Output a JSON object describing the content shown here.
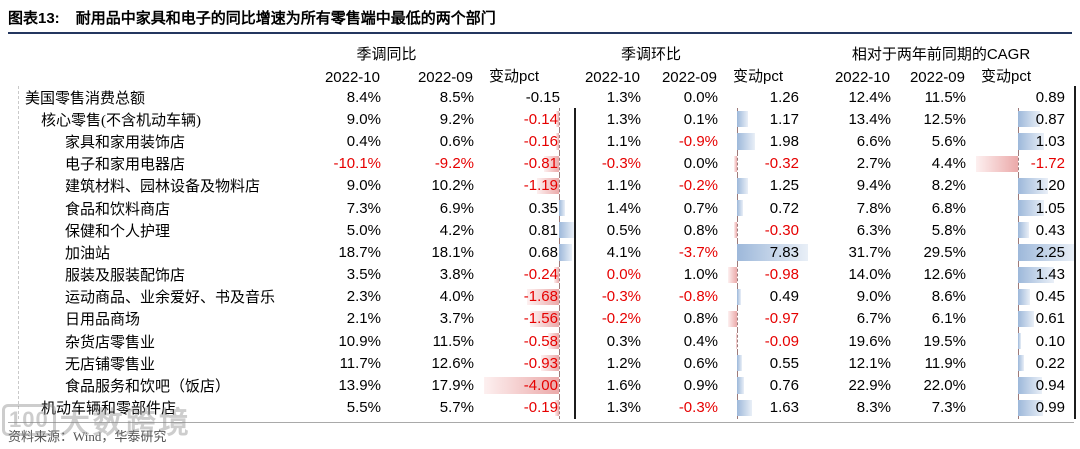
{
  "figure": {
    "label": "图表13:",
    "title": "耐用品中家具和电子的同比增速为所有零售端中最低的两个部门"
  },
  "footer": {
    "source": "资料来源：Wind，华泰研究"
  },
  "watermark": {
    "logo": "100",
    "text": "大数跨境"
  },
  "colors": {
    "teal_header_row": "#2d7d8e",
    "subtotal_row_gray": "#d9d9d9",
    "negative_red": "#e60000",
    "title_rule_navy": "#24365f",
    "bar_positive_blue": "#9db8da",
    "bar_negative_red": "#eba9a9"
  },
  "chart_data": {
    "type": "table",
    "title": "耐用品中家具和电子的同比增速为所有零售端中最低的两个部门",
    "column_groups": [
      {
        "title": "季调同比",
        "columns": [
          "2022-10",
          "2022-09",
          "变动pct"
        ]
      },
      {
        "title": "季调环比",
        "columns": [
          "2022-10",
          "2022-09",
          "变动pct"
        ]
      },
      {
        "title": "相对于两年前同期的CAGR",
        "columns": [
          "2022-10",
          "2022-09",
          "变动pct"
        ]
      }
    ],
    "rows": [
      {
        "label": "美国零售消费总额",
        "type": "total",
        "cells": [
          [
            "8.4%",
            "8.5%",
            -0.15
          ],
          [
            "1.3%",
            "0.0%",
            1.26
          ],
          [
            "12.4%",
            "11.5%",
            0.89
          ]
        ]
      },
      {
        "label": "核心零售(不含机动车辆)",
        "type": "subtotal",
        "cells": [
          [
            "9.0%",
            "9.2%",
            -0.14
          ],
          [
            "1.3%",
            "0.1%",
            1.17
          ],
          [
            "13.4%",
            "12.5%",
            0.87
          ]
        ]
      },
      {
        "label": "家具和家用装饰店",
        "type": "item",
        "cells": [
          [
            "0.4%",
            "0.6%",
            -0.16
          ],
          [
            "1.1%",
            "-0.9%",
            1.98
          ],
          [
            "6.6%",
            "5.6%",
            1.03
          ]
        ]
      },
      {
        "label": "电子和家用电器店",
        "type": "item",
        "cells": [
          [
            "-10.1%",
            "-9.2%",
            -0.81
          ],
          [
            "-0.3%",
            "0.0%",
            -0.32
          ],
          [
            "2.7%",
            "4.4%",
            -1.72
          ]
        ]
      },
      {
        "label": "建筑材料、园林设备及物料店",
        "type": "item",
        "cells": [
          [
            "9.0%",
            "10.2%",
            -1.19
          ],
          [
            "1.1%",
            "-0.2%",
            1.25
          ],
          [
            "9.4%",
            "8.2%",
            1.2
          ]
        ]
      },
      {
        "label": "食品和饮料商店",
        "type": "item",
        "cells": [
          [
            "7.3%",
            "6.9%",
            0.35
          ],
          [
            "1.4%",
            "0.7%",
            0.72
          ],
          [
            "7.8%",
            "6.8%",
            1.05
          ]
        ]
      },
      {
        "label": "保健和个人护理",
        "type": "item",
        "cells": [
          [
            "5.0%",
            "4.2%",
            0.81
          ],
          [
            "0.5%",
            "0.8%",
            -0.3
          ],
          [
            "6.3%",
            "5.8%",
            0.43
          ]
        ]
      },
      {
        "label": "加油站",
        "type": "item",
        "cells": [
          [
            "18.7%",
            "18.1%",
            0.68
          ],
          [
            "4.1%",
            "-3.7%",
            7.83
          ],
          [
            "31.7%",
            "29.5%",
            2.25
          ]
        ]
      },
      {
        "label": "服装及服装配饰店",
        "type": "item",
        "red_overrides": [
          [
            1,
            0
          ]
        ],
        "cells": [
          [
            "3.5%",
            "3.8%",
            -0.24
          ],
          [
            "0.0%",
            "1.0%",
            -0.98
          ],
          [
            "14.0%",
            "12.6%",
            1.43
          ]
        ]
      },
      {
        "label": "运动商品、业余爱好、书及音乐",
        "type": "item",
        "cells": [
          [
            "2.3%",
            "4.0%",
            -1.68
          ],
          [
            "-0.3%",
            "-0.8%",
            0.49
          ],
          [
            "9.0%",
            "8.6%",
            0.45
          ]
        ]
      },
      {
        "label": "日用品商场",
        "type": "item",
        "cells": [
          [
            "2.1%",
            "3.7%",
            -1.56
          ],
          [
            "-0.2%",
            "0.8%",
            -0.97
          ],
          [
            "6.7%",
            "6.1%",
            0.61
          ]
        ]
      },
      {
        "label": "杂货店零售业",
        "type": "item",
        "cells": [
          [
            "10.9%",
            "11.5%",
            -0.58
          ],
          [
            "0.3%",
            "0.4%",
            -0.09
          ],
          [
            "19.6%",
            "19.5%",
            0.1
          ]
        ]
      },
      {
        "label": "无店铺零售业",
        "type": "item",
        "cells": [
          [
            "11.7%",
            "12.6%",
            -0.93
          ],
          [
            "1.2%",
            "0.6%",
            0.55
          ],
          [
            "12.1%",
            "11.9%",
            0.22
          ]
        ]
      },
      {
        "label": "食品服务和饮吧（饭店）",
        "type": "item",
        "cells": [
          [
            "13.9%",
            "17.9%",
            -4.0
          ],
          [
            "1.6%",
            "0.9%",
            0.76
          ],
          [
            "22.9%",
            "22.0%",
            0.94
          ]
        ]
      },
      {
        "label": "机动车辆和零部件店",
        "type": "subtotal",
        "cells": [
          [
            "5.5%",
            "5.7%",
            -0.19
          ],
          [
            "1.3%",
            "-0.3%",
            1.63
          ],
          [
            "8.3%",
            "7.3%",
            0.99
          ]
        ]
      }
    ]
  }
}
